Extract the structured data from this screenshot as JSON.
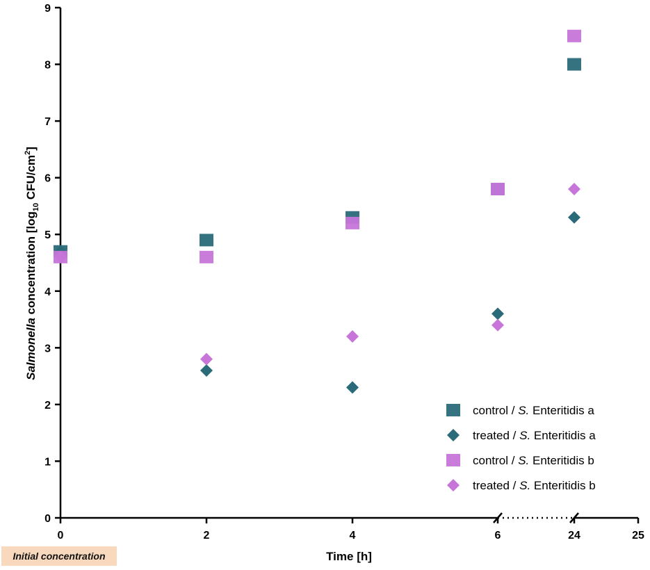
{
  "chart_data": {
    "type": "scatter",
    "title": "",
    "xlabel": "Time [h]",
    "ylabel_parts": {
      "italic": "Salmonella",
      "main": " concentration [log",
      "sub": "10",
      "mid": " CFU/cm",
      "sup": "2",
      "end": "]"
    },
    "x_ticks": [
      "0",
      "2",
      "4",
      "6",
      "24",
      "25"
    ],
    "y_ticks": [
      "0",
      "1",
      "2",
      "3",
      "4",
      "5",
      "6",
      "7",
      "8",
      "9"
    ],
    "ylim": [
      0,
      9
    ],
    "x_axis_break": "between 6 and 24",
    "grid": false,
    "legend_position": "bottom-right",
    "annotation": "Initial concentration",
    "series": [
      {
        "name_pre": "control / ",
        "name_italic": "S.",
        "name_post": " Enteritidis a",
        "marker": "square",
        "color": "#2a6b7a",
        "points": [
          {
            "x": "0",
            "y": 4.7
          },
          {
            "x": "2",
            "y": 4.9
          },
          {
            "x": "4",
            "y": 5.3
          },
          {
            "x": "6",
            "y": 5.8
          },
          {
            "x": "24",
            "y": 8.0
          }
        ]
      },
      {
        "name_pre": "treated / ",
        "name_italic": "S.",
        "name_post": " Enteritidis a",
        "marker": "diamond",
        "color": "#2a6b7a",
        "points": [
          {
            "x": "0",
            "y": 4.7
          },
          {
            "x": "2",
            "y": 2.6
          },
          {
            "x": "4",
            "y": 2.3
          },
          {
            "x": "6",
            "y": 3.6
          },
          {
            "x": "24",
            "y": 5.3
          }
        ]
      },
      {
        "name_pre": "control / ",
        "name_italic": "S.",
        "name_post": " Enteritidis b",
        "marker": "square",
        "color": "#c775d9",
        "points": [
          {
            "x": "0",
            "y": 4.6
          },
          {
            "x": "2",
            "y": 4.6
          },
          {
            "x": "4",
            "y": 5.2
          },
          {
            "x": "6",
            "y": 5.8
          },
          {
            "x": "24",
            "y": 8.5
          }
        ]
      },
      {
        "name_pre": "treated / ",
        "name_italic": "S.",
        "name_post": " Enteritidis b",
        "marker": "diamond",
        "color": "#c775d9",
        "points": [
          {
            "x": "0",
            "y": 4.6
          },
          {
            "x": "2",
            "y": 2.8
          },
          {
            "x": "4",
            "y": 3.2
          },
          {
            "x": "6",
            "y": 3.4
          },
          {
            "x": "24",
            "y": 5.8
          }
        ]
      }
    ]
  }
}
